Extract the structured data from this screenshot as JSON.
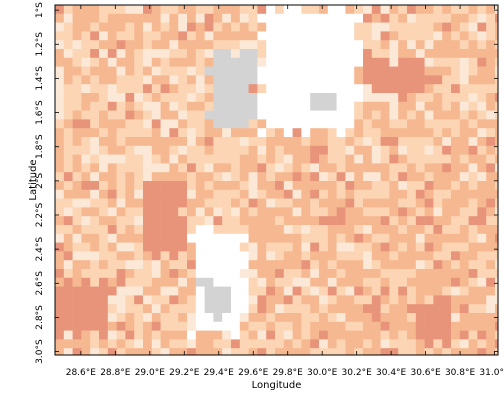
{
  "chart_data": {
    "type": "heatmap",
    "title": "",
    "xlabel": "Longitude",
    "ylabel": "Latitude",
    "xlim": [
      28.45,
      31.02
    ],
    "ylim": [
      -3.02,
      -0.97
    ],
    "x_ticks": [
      "28.6°E",
      "28.8°E",
      "29.0°E",
      "29.2°E",
      "29.4°E",
      "29.6°E",
      "29.8°E",
      "30.0°E",
      "30.2°E",
      "30.4°E",
      "30.6°E",
      "30.8°E",
      "31.0°E"
    ],
    "x_tick_values": [
      28.6,
      28.8,
      29.0,
      29.2,
      29.4,
      29.6,
      29.8,
      30.0,
      30.2,
      30.4,
      30.6,
      30.8,
      31.0
    ],
    "y_ticks": [
      "1°S",
      "1.2°S",
      "1.4°S",
      "1.6°S",
      "1.8°S",
      "2°S",
      "2.2°S",
      "2.4°S",
      "2.6°S",
      "2.8°S",
      "3.0°S"
    ],
    "y_tick_values": [
      -1.0,
      -1.2,
      -1.4,
      -1.6,
      -1.8,
      -2.0,
      -2.2,
      -2.4,
      -2.6,
      -2.8,
      -3.0
    ],
    "palette": {
      "very_light": "#fbe8d6",
      "light": "#fcd5b5",
      "medium": "#f6b890",
      "dark": "#e8947a",
      "no_data": "#d3d3d3",
      "water": "#ffffff"
    },
    "regions": [
      {
        "class": "no_data",
        "name": "lake-kivu-north",
        "lon": [
          29.35,
          29.6
        ],
        "lat": [
          -1.7,
          -1.25
        ]
      },
      {
        "class": "no_data",
        "name": "lake-small-center",
        "lon": [
          29.95,
          30.1
        ],
        "lat": [
          -1.6,
          -1.5
        ]
      },
      {
        "class": "no_data",
        "name": "no-data-south",
        "lon": [
          29.3,
          29.45
        ],
        "lat": [
          -2.8,
          -2.6
        ]
      },
      {
        "class": "water",
        "name": "lake-north-east",
        "lon": [
          29.65,
          30.2
        ],
        "lat": [
          -1.7,
          -1.0
        ]
      },
      {
        "class": "water",
        "name": "lake-south",
        "lon": [
          29.25,
          29.55
        ],
        "lat": [
          -2.9,
          -2.3
        ]
      },
      {
        "class": "dark",
        "name": "hotspot-north-east",
        "lon": [
          30.25,
          30.6
        ],
        "lat": [
          -1.5,
          -1.3
        ]
      },
      {
        "class": "dark",
        "name": "hotspot-west",
        "lon": [
          28.95,
          29.2
        ],
        "lat": [
          -2.45,
          -2.0
        ]
      },
      {
        "class": "dark",
        "name": "hotspot-south-west",
        "lon": [
          28.45,
          28.75
        ],
        "lat": [
          -2.9,
          -2.6
        ]
      },
      {
        "class": "dark",
        "name": "hotspot-south-east",
        "lon": [
          30.55,
          30.75
        ],
        "lat": [
          -2.95,
          -2.7
        ]
      },
      {
        "class": "medium",
        "name": "band-east",
        "lon": [
          29.7,
          31.0
        ],
        "lat": [
          -3.0,
          -2.0
        ]
      }
    ]
  }
}
